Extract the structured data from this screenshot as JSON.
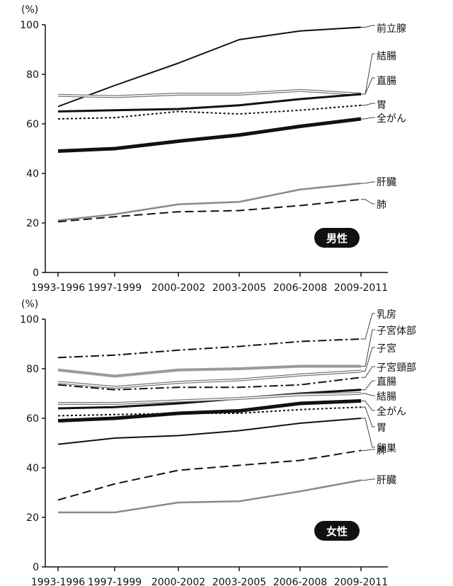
{
  "chart_data": [
    {
      "type": "line",
      "title": "男性",
      "ylabel": "(%)",
      "ylim": [
        0,
        100
      ],
      "yticks": [
        0,
        20,
        40,
        60,
        80,
        100
      ],
      "categories": [
        "1993-1996",
        "1997-1999",
        "2000-2002",
        "2003-2005",
        "2006-2008",
        "2009-2011"
      ],
      "series": [
        {
          "name": "前立腺",
          "style": "solid-thin",
          "color": "#111111",
          "values": [
            67,
            75.5,
            84.5,
            94,
            97.5,
            99
          ]
        },
        {
          "name": "結腸",
          "style": "double",
          "color": "#888888",
          "values": [
            71.5,
            71,
            72,
            72,
            73.5,
            72
          ]
        },
        {
          "name": "直腸",
          "style": "solid-med",
          "color": "#111111",
          "values": [
            65,
            65.5,
            66,
            67.5,
            70,
            72
          ]
        },
        {
          "name": "胃",
          "style": "dotted",
          "color": "#111111",
          "values": [
            62,
            62.5,
            65,
            64,
            65.5,
            67.5
          ]
        },
        {
          "name": "全がん",
          "style": "solid-thick",
          "color": "#111111",
          "values": [
            49,
            50,
            53,
            55.5,
            59,
            62
          ]
        },
        {
          "name": "肝臓",
          "style": "solid-gray",
          "color": "#888888",
          "values": [
            21,
            23.5,
            27.5,
            28.5,
            33.5,
            36
          ]
        },
        {
          "name": "肺",
          "style": "dashed",
          "color": "#111111",
          "values": [
            20.5,
            22.5,
            24.5,
            25,
            27,
            29.5
          ]
        }
      ]
    },
    {
      "type": "line",
      "title": "女性",
      "ylabel": "(%)",
      "ylim": [
        0,
        100
      ],
      "yticks": [
        0,
        20,
        40,
        60,
        80,
        100
      ],
      "categories": [
        "1993-1996",
        "1997-1999",
        "2000-2002",
        "2003-2005",
        "2006-2008",
        "2009-2011"
      ],
      "series": [
        {
          "name": "乳房",
          "style": "dashdot",
          "color": "#111111",
          "values": [
            84.5,
            85.5,
            87.5,
            89,
            91,
            92
          ]
        },
        {
          "name": "子宮体部",
          "style": "thick-gray",
          "color": "#999999",
          "values": [
            79.5,
            77,
            79.5,
            80,
            81,
            81
          ]
        },
        {
          "name": "子宮",
          "style": "double",
          "color": "#888888",
          "values": [
            74.5,
            72.5,
            74.5,
            75.5,
            77.5,
            79
          ]
        },
        {
          "name": "子宮頸部",
          "style": "dashdot",
          "color": "#111111",
          "values": [
            73.5,
            71.5,
            72.5,
            72.5,
            73.5,
            76.5
          ]
        },
        {
          "name": "直腸",
          "style": "solid-med",
          "color": "#111111",
          "values": [
            64,
            64.5,
            66,
            68,
            70,
            71.5
          ]
        },
        {
          "name": "結腸",
          "style": "double",
          "color": "#888888",
          "values": [
            66,
            66,
            67,
            68,
            69.5,
            70
          ]
        },
        {
          "name": "全がん",
          "style": "solid-thick",
          "color": "#111111",
          "values": [
            59,
            60,
            62,
            63,
            66,
            67
          ]
        },
        {
          "name": "胃",
          "style": "dotted",
          "color": "#111111",
          "values": [
            61,
            61.5,
            62,
            62,
            63.5,
            64.5
          ]
        },
        {
          "name": "卵巣",
          "style": "solid-thin",
          "color": "#111111",
          "values": [
            49.5,
            52,
            53,
            55,
            58,
            60
          ]
        },
        {
          "name": "肺",
          "style": "dashed",
          "color": "#111111",
          "values": [
            27,
            33.5,
            39,
            41,
            43,
            47
          ]
        },
        {
          "name": "肝臓",
          "style": "solid-gray",
          "color": "#888888",
          "values": [
            22,
            22,
            26,
            26.5,
            30.5,
            35
          ]
        }
      ]
    }
  ]
}
